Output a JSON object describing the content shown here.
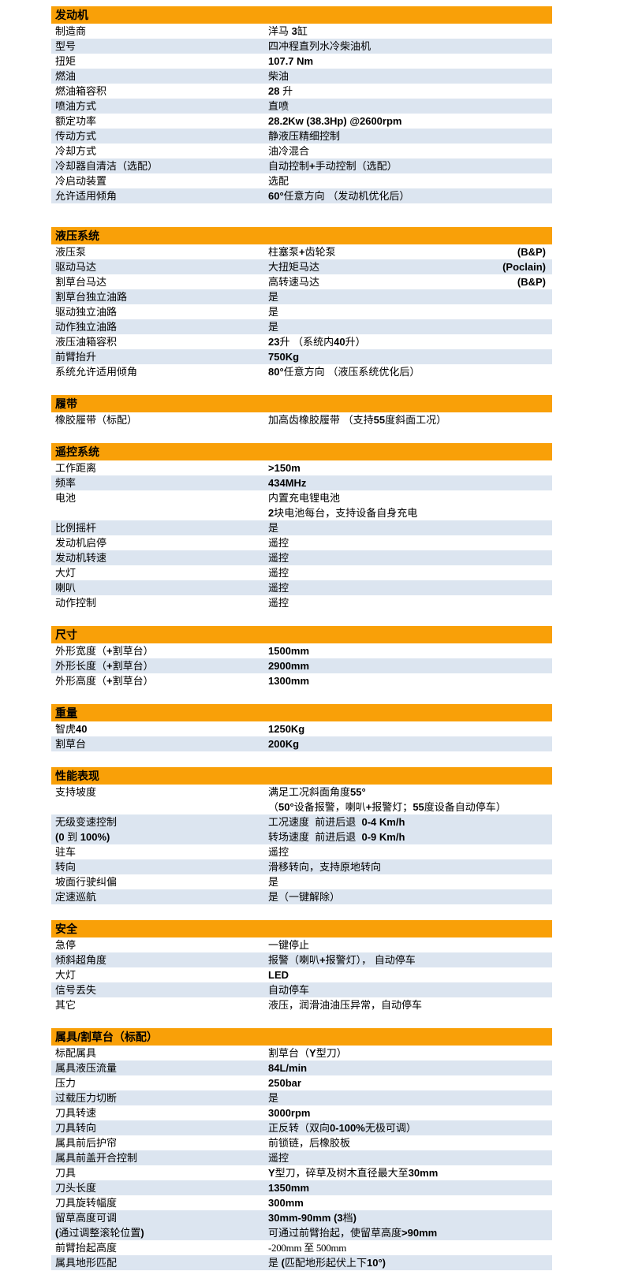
{
  "colors": {
    "section_header_bg": "#F9A008",
    "row_stripe_bg": "#DCE5F0",
    "text": "#000000",
    "page_bg": "#FFFFFF"
  },
  "sections": [
    {
      "key": "engine",
      "title": "发动机",
      "rows": [
        {
          "label": "制造商",
          "value": "洋马 3缸"
        },
        {
          "label": "型号",
          "value": "四冲程直列水冷柴油机"
        },
        {
          "label": "扭矩",
          "value": "107.7 Nm"
        },
        {
          "label": "燃油",
          "value": "柴油"
        },
        {
          "label": "燃油箱容积",
          "value": "28 升"
        },
        {
          "label": "喷油方式",
          "value": "直喷"
        },
        {
          "label": "额定功率",
          "value": "28.2Kw (38.3Hp) @2600rpm"
        },
        {
          "label": "传动方式",
          "value": "静液压精细控制"
        },
        {
          "label": "冷却方式",
          "value": "油冷混合"
        },
        {
          "label": "冷却器自清洁（选配）",
          "value": "自动控制+手动控制（选配）"
        },
        {
          "label": "冷启动装置",
          "value": "选配"
        },
        {
          "label": "允许适用倾角",
          "value": "60°任意方向 （发动机优化后）"
        }
      ]
    },
    {
      "key": "hydraulic-system",
      "title": "液压系统",
      "rows": [
        {
          "label": "液压泵",
          "value": "柱塞泵+齿轮泵",
          "note": "(B&P)"
        },
        {
          "label": "驱动马达",
          "value": "大扭矩马达",
          "note": "(Poclain)"
        },
        {
          "label": "割草台马达",
          "value": "高转速马达",
          "note": "(B&P)"
        },
        {
          "label": "割草台独立油路",
          "value": "是"
        },
        {
          "label": "驱动独立油路",
          "value": "是"
        },
        {
          "label": "动作独立油路",
          "value": "是"
        },
        {
          "label": "液压油箱容积",
          "value": "23升 （系统内40升）"
        },
        {
          "label": "前臂抬升",
          "value": "750Kg"
        },
        {
          "label": "系统允许适用倾角",
          "value": "80°任意方向 （液压系统优化后）"
        }
      ]
    },
    {
      "key": "tracks",
      "title": "履带",
      "rows": [
        {
          "label": "橡胶履带（标配）",
          "value": "加高齿橡胶履带 （支持55度斜面工况）"
        }
      ]
    },
    {
      "key": "remote-control-system",
      "title": "遥控系统",
      "rows": [
        {
          "label": "工作距离",
          "value": ">150m"
        },
        {
          "label": "频率",
          "value": "434MHz"
        },
        {
          "label": "电池",
          "value": [
            "内置充电锂电池",
            "2块电池每台，支持设备自身充电"
          ]
        },
        {
          "label": "比例摇杆",
          "value": "是"
        },
        {
          "label": "发动机启停",
          "value": "遥控"
        },
        {
          "label": "发动机转速",
          "value": "遥控"
        },
        {
          "label": "大灯",
          "value": "遥控"
        },
        {
          "label": "喇叭",
          "value": "遥控"
        },
        {
          "label": "动作控制",
          "value": "遥控"
        }
      ]
    },
    {
      "key": "dimensions",
      "title": "尺寸",
      "rows": [
        {
          "label": "外形宽度（+割草台）",
          "value": "1500mm"
        },
        {
          "label": "外形长度（+割草台）",
          "value": "2900mm"
        },
        {
          "label": "外形高度（+割草台）",
          "value": "1300mm"
        }
      ]
    },
    {
      "key": "weight",
      "title": "重量",
      "title_underline": true,
      "rows": [
        {
          "label": "智虎40",
          "value": "1250Kg"
        },
        {
          "label": "割草台",
          "value": "200Kg"
        }
      ]
    },
    {
      "key": "performance",
      "title": "性能表现",
      "rows": [
        {
          "label": "支持坡度",
          "value": [
            "满足工况斜面角度55°",
            "（50°设备报警，喇叭+报警灯；55度设备自动停车）"
          ]
        },
        {
          "label": [
            "无级变速控制",
            "(0 到 100%)"
          ],
          "value": [
            "工况速度  前进后退  0-4 Km/h",
            "转场速度  前进后退  0-9 Km/h"
          ]
        },
        {
          "label": "驻车",
          "value": "遥控"
        },
        {
          "label": "转向",
          "value": "滑移转向，支持原地转向"
        },
        {
          "label": "坡面行驶纠偏",
          "value": "是"
        },
        {
          "label": "定速巡航",
          "value": "是（一键解除）"
        }
      ]
    },
    {
      "key": "safety",
      "title": "安全",
      "rows": [
        {
          "label": "急停",
          "value": "一键停止"
        },
        {
          "label": "倾斜超角度",
          "value": "报警（喇叭+报警灯）， 自动停车"
        },
        {
          "label": "大灯",
          "value": "LED"
        },
        {
          "label": "信号丢失",
          "value": "自动停车"
        },
        {
          "label": "其它",
          "value": "液压，润滑油油压异常，自动停车"
        }
      ]
    },
    {
      "key": "attachment-mower-deck",
      "title": "属具/割草台（标配）",
      "rows": [
        {
          "label": "标配属具",
          "value": "割草台（Y型刀）"
        },
        {
          "label": "属具液压流量",
          "value": "84L/min"
        },
        {
          "label": "压力",
          "value": "250bar"
        },
        {
          "label": "过载压力切断",
          "value": "是"
        },
        {
          "label": "刀具转速",
          "value": "3000rpm"
        },
        {
          "label": "刀具转向",
          "value": "正反转（双向0-100%无极可调）"
        },
        {
          "label": "属具前后护帘",
          "value": "前锁链，后橡胶板"
        },
        {
          "label": "属具前盖开合控制",
          "value": "遥控"
        },
        {
          "label": "刀具",
          "value": "Y型刀，碎草及树木直径最大至30mm"
        },
        {
          "label": "刀头长度",
          "value": "1350mm"
        },
        {
          "label": "刀具旋转幅度",
          "value": "300mm"
        },
        {
          "label": [
            "留草高度可调",
            "(通过调整滚轮位置)"
          ],
          "value": [
            "30mm-90mm (3档)",
            "可通过前臂抬起，使留草高度>90mm"
          ]
        },
        {
          "label": "前臂抬起高度",
          "value": "-200mm 至 500mm",
          "plain": true
        },
        {
          "label": "属具地形匹配",
          "value": "是 (匹配地形起伏上下10°)"
        }
      ]
    }
  ]
}
